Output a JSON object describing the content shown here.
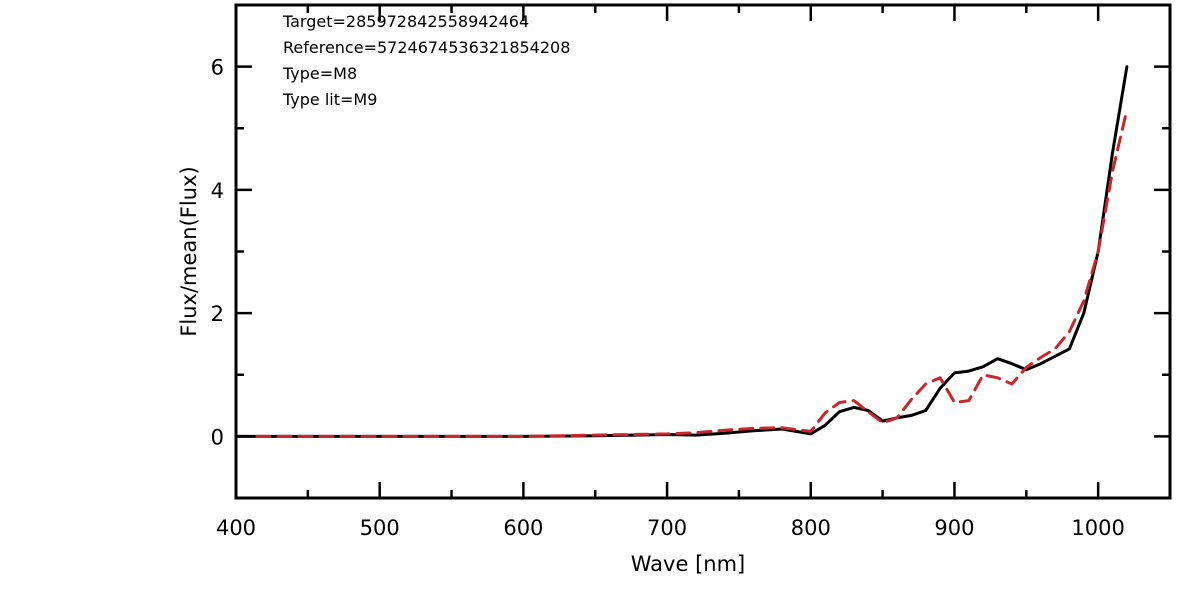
{
  "chart_data": {
    "type": "line",
    "title": "",
    "xlabel": "Wave [nm]",
    "ylabel": "Flux/mean(Flux)",
    "xlim": [
      400,
      1050
    ],
    "ylim": [
      -1,
      7
    ],
    "x_ticks": [
      400,
      500,
      600,
      700,
      800,
      900,
      1000
    ],
    "y_ticks": [
      0,
      2,
      4,
      6
    ],
    "grid": false,
    "annotations": [
      "Target=285972842558942464",
      "Reference=5724674536321854208",
      "Type=M8",
      "Type lit=M9"
    ],
    "series": [
      {
        "style": "solid",
        "color": "#000000",
        "x": [
          400,
          500,
          600,
          650,
          700,
          720,
          740,
          760,
          780,
          800,
          810,
          820,
          830,
          840,
          850,
          860,
          870,
          880,
          890,
          900,
          910,
          920,
          930,
          940,
          950,
          960,
          970,
          980,
          990,
          1000,
          1010,
          1020
        ],
        "y": [
          0.0,
          0.0,
          0.0,
          0.01,
          0.03,
          0.02,
          0.05,
          0.09,
          0.12,
          0.04,
          0.18,
          0.4,
          0.47,
          0.42,
          0.25,
          0.3,
          0.34,
          0.42,
          0.78,
          1.03,
          1.06,
          1.13,
          1.26,
          1.18,
          1.08,
          1.18,
          1.3,
          1.42,
          2.0,
          3.0,
          4.6,
          6.0
        ]
      },
      {
        "style": "dashed",
        "color": "#c8282d",
        "x": [
          400,
          500,
          600,
          650,
          700,
          720,
          740,
          760,
          780,
          800,
          810,
          820,
          830,
          840,
          850,
          860,
          870,
          880,
          890,
          900,
          910,
          920,
          930,
          940,
          950,
          960,
          970,
          980,
          990,
          1000,
          1010,
          1020
        ],
        "y": [
          0.0,
          0.0,
          0.0,
          0.02,
          0.04,
          0.06,
          0.1,
          0.13,
          0.14,
          0.08,
          0.38,
          0.55,
          0.58,
          0.4,
          0.22,
          0.3,
          0.6,
          0.85,
          0.95,
          0.55,
          0.58,
          1.0,
          0.95,
          0.85,
          1.12,
          1.28,
          1.42,
          1.7,
          2.2,
          3.0,
          4.3,
          5.3
        ]
      }
    ]
  }
}
